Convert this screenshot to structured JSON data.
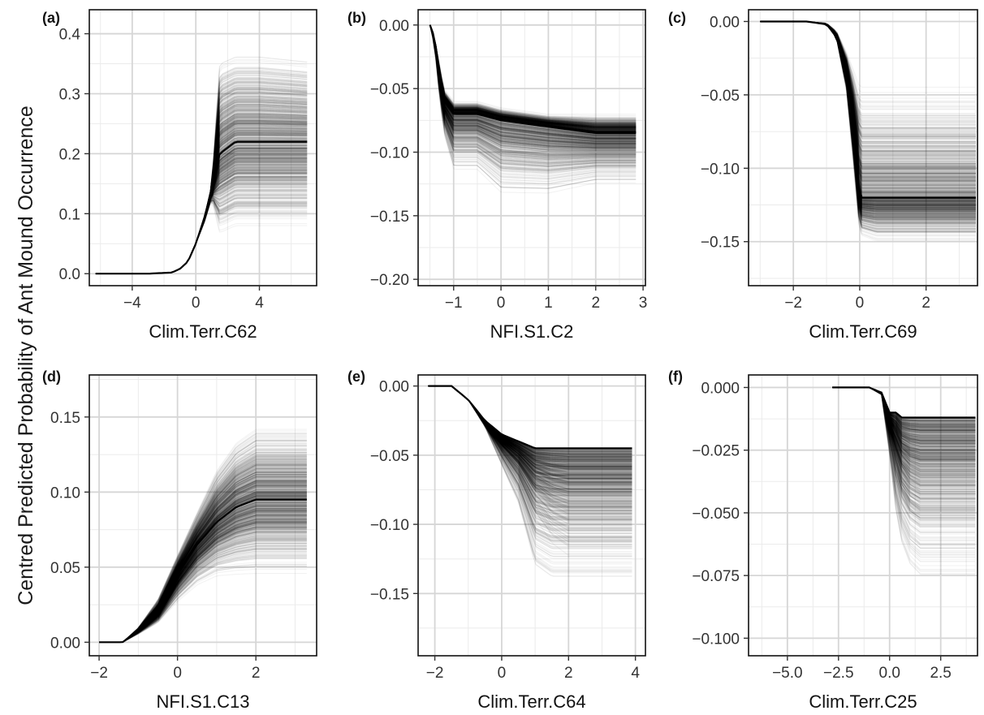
{
  "figure": {
    "ylabel": "Centred Predicted Probability of Ant Mound Occurrence"
  },
  "chart_data": [
    {
      "type": "line",
      "panel_label": "(a)",
      "xlabel": "Clim.Terr.C62",
      "ylabel": "Centred Predicted Probability of Ant Mound Occurrence",
      "xlim": [
        -6.7,
        7.6
      ],
      "ylim": [
        -0.02,
        0.44
      ],
      "xticks": [
        -4,
        0,
        4
      ],
      "xtick_labels": [
        "−4",
        "0",
        "4"
      ],
      "yticks": [
        0.0,
        0.1,
        0.2,
        0.3,
        0.4
      ],
      "ytick_labels": [
        "0.0",
        "0.1",
        "0.2",
        "0.3",
        "0.4"
      ],
      "x_data_range": [
        -6.3,
        7.0
      ],
      "curves": {
        "count": 1000,
        "opacity": 0.05,
        "color": "#000000"
      },
      "grid": true,
      "series": [
        {
          "x": [
            -6.3,
            -3.0,
            -1.5,
            -1.0,
            -0.5,
            0.0,
            0.5,
            1.0,
            1.5,
            2.5,
            4.0,
            7.0
          ],
          "values": [
            0.0,
            0.0,
            0.002,
            0.008,
            0.02,
            0.05,
            0.09,
            0.14,
            0.2,
            0.22,
            0.22,
            0.22
          ]
        },
        {
          "x": [
            -6.3,
            -3.0,
            -1.5,
            -1.0,
            -0.5,
            0.0,
            0.5,
            1.0,
            1.5,
            2.5,
            4.0,
            7.0
          ],
          "values": [
            0.0,
            0.0,
            0.002,
            0.008,
            0.02,
            0.05,
            0.09,
            0.15,
            0.38,
            0.39,
            0.39,
            0.38
          ]
        },
        {
          "x": [
            -6.3,
            -3.0,
            -1.5,
            -1.0,
            -0.5,
            0.0,
            0.5,
            1.0,
            1.5,
            2.5,
            4.0,
            7.0
          ],
          "values": [
            0.0,
            0.0,
            0.002,
            0.008,
            0.02,
            0.05,
            0.08,
            0.12,
            0.04,
            0.05,
            0.05,
            0.05
          ]
        }
      ]
    },
    {
      "type": "line",
      "panel_label": "(b)",
      "xlabel": "NFI.S1.C2",
      "ylabel": "Centred Predicted Probability of Ant Mound Occurrence",
      "xlim": [
        -1.75,
        3.05
      ],
      "ylim": [
        -0.205,
        0.012
      ],
      "xticks": [
        -1,
        0,
        1,
        2,
        3
      ],
      "xtick_labels": [
        "−1",
        "0",
        "1",
        "2",
        "3"
      ],
      "yticks": [
        0.0,
        -0.05,
        -0.1,
        -0.15,
        -0.2
      ],
      "ytick_labels": [
        "0.00",
        "−0.05",
        "−0.10",
        "−0.15",
        "−0.20"
      ],
      "x_data_range": [
        -1.5,
        2.85
      ],
      "curves": {
        "count": 1000,
        "opacity": 0.05,
        "color": "#000000"
      },
      "grid": true,
      "series": [
        {
          "x": [
            -1.5,
            -1.4,
            -1.3,
            -1.2,
            -1.0,
            -0.5,
            0.0,
            1.0,
            2.0,
            2.85
          ],
          "values": [
            0.0,
            -0.01,
            -0.04,
            -0.06,
            -0.07,
            -0.07,
            -0.075,
            -0.08,
            -0.085,
            -0.085
          ]
        },
        {
          "x": [
            -1.5,
            -1.4,
            -1.3,
            -1.2,
            -1.0,
            -0.5,
            0.0,
            1.0,
            2.0,
            2.85
          ],
          "values": [
            0.0,
            -0.01,
            -0.03,
            -0.05,
            -0.06,
            -0.06,
            -0.065,
            -0.07,
            -0.07,
            -0.07
          ]
        },
        {
          "x": [
            -1.5,
            -1.4,
            -1.3,
            -1.2,
            -1.0,
            -0.5,
            0.0,
            1.0,
            2.0,
            2.85
          ],
          "values": [
            0.0,
            -0.02,
            -0.06,
            -0.09,
            -0.12,
            -0.12,
            -0.14,
            -0.14,
            -0.13,
            -0.13
          ]
        }
      ]
    },
    {
      "type": "line",
      "panel_label": "(c)",
      "xlabel": "Clim.Terr.C69",
      "ylabel": "Centred Predicted Probability of Ant Mound Occurrence",
      "xlim": [
        -3.35,
        3.55
      ],
      "ylim": [
        -0.18,
        0.008
      ],
      "xticks": [
        -2,
        0,
        2
      ],
      "xtick_labels": [
        "−2",
        "0",
        "2"
      ],
      "yticks": [
        0.0,
        -0.05,
        -0.1,
        -0.15
      ],
      "ytick_labels": [
        "0.00",
        "−0.05",
        "−0.10",
        "−0.15"
      ],
      "x_data_range": [
        -3.0,
        3.5
      ],
      "curves": {
        "count": 1000,
        "opacity": 0.05,
        "color": "#000000"
      },
      "grid": true,
      "series": [
        {
          "x": [
            -3.0,
            -1.6,
            -1.0,
            -0.7,
            -0.4,
            -0.2,
            0.0,
            0.5,
            3.5
          ],
          "values": [
            0.0,
            0.0,
            -0.002,
            -0.01,
            -0.035,
            -0.07,
            -0.12,
            -0.12,
            -0.12
          ]
        },
        {
          "x": [
            -3.0,
            -1.6,
            -1.0,
            -0.7,
            -0.4,
            -0.2,
            0.0,
            0.5,
            3.5
          ],
          "values": [
            0.0,
            0.0,
            -0.001,
            -0.006,
            -0.02,
            -0.03,
            -0.04,
            -0.04,
            -0.04
          ]
        },
        {
          "x": [
            -3.0,
            -1.6,
            -1.0,
            -0.7,
            -0.4,
            -0.2,
            0.0,
            0.5,
            3.5
          ],
          "values": [
            0.0,
            0.0,
            -0.002,
            -0.012,
            -0.05,
            -0.1,
            -0.15,
            -0.155,
            -0.155
          ]
        }
      ]
    },
    {
      "type": "line",
      "panel_label": "(d)",
      "xlabel": "NFI.S1.C13",
      "ylabel": "Centred Predicted Probability of Ant Mound Occurrence",
      "xlim": [
        -2.25,
        3.55
      ],
      "ylim": [
        -0.009,
        0.178
      ],
      "xticks": [
        -2,
        0,
        2
      ],
      "xtick_labels": [
        "−2",
        "0",
        "2"
      ],
      "yticks": [
        0.0,
        0.05,
        0.1,
        0.15
      ],
      "ytick_labels": [
        "0.00",
        "0.05",
        "0.10",
        "0.15"
      ],
      "x_data_range": [
        -2.0,
        3.3
      ],
      "curves": {
        "count": 1000,
        "opacity": 0.05,
        "color": "#000000"
      },
      "grid": true,
      "series": [
        {
          "x": [
            -2.0,
            -1.4,
            -1.0,
            -0.5,
            0.0,
            0.5,
            1.0,
            1.5,
            2.0,
            3.3
          ],
          "values": [
            0.0,
            0.0,
            0.008,
            0.02,
            0.045,
            0.065,
            0.08,
            0.09,
            0.095,
            0.095
          ]
        },
        {
          "x": [
            -2.0,
            -1.4,
            -1.0,
            -0.5,
            0.0,
            0.5,
            1.0,
            1.5,
            2.0,
            3.3
          ],
          "values": [
            0.0,
            0.0,
            0.01,
            0.03,
            0.06,
            0.09,
            0.12,
            0.14,
            0.15,
            0.15
          ]
        },
        {
          "x": [
            -2.0,
            -1.4,
            -1.0,
            -0.5,
            0.0,
            0.5,
            1.0,
            1.5,
            2.0,
            3.3
          ],
          "values": [
            0.0,
            0.0,
            0.005,
            0.012,
            0.025,
            0.035,
            0.04,
            0.04,
            0.04,
            0.04
          ]
        }
      ]
    },
    {
      "type": "line",
      "panel_label": "(e)",
      "xlabel": "Clim.Terr.C64",
      "ylabel": "Centred Predicted Probability of Ant Mound Occurrence",
      "xlim": [
        -2.5,
        4.3
      ],
      "ylim": [
        -0.195,
        0.008
      ],
      "xticks": [
        -2,
        0,
        2,
        4
      ],
      "xtick_labels": [
        "−2",
        "0",
        "2",
        "4"
      ],
      "yticks": [
        0.0,
        -0.05,
        -0.1,
        -0.15
      ],
      "ytick_labels": [
        "0.00",
        "−0.05",
        "−0.10",
        "−0.15"
      ],
      "x_data_range": [
        -2.2,
        3.9
      ],
      "curves": {
        "count": 1000,
        "opacity": 0.05,
        "color": "#000000"
      },
      "grid": true,
      "series": [
        {
          "x": [
            -2.2,
            -1.5,
            -1.0,
            -0.5,
            0.0,
            0.5,
            1.0,
            1.5,
            2.0,
            3.9
          ],
          "values": [
            0.0,
            0.0,
            -0.01,
            -0.025,
            -0.035,
            -0.04,
            -0.045,
            -0.045,
            -0.045,
            -0.045
          ]
        },
        {
          "x": [
            -2.2,
            -1.5,
            -1.0,
            -0.5,
            0.0,
            0.5,
            1.0,
            1.5,
            2.0,
            3.9
          ],
          "values": [
            0.0,
            0.0,
            -0.01,
            -0.03,
            -0.05,
            -0.07,
            -0.1,
            -0.12,
            -0.13,
            -0.13
          ]
        },
        {
          "x": [
            -2.2,
            -1.5,
            -1.0,
            -0.5,
            0.0,
            0.5,
            1.0,
            1.5,
            2.0,
            3.9
          ],
          "values": [
            0.0,
            0.0,
            -0.01,
            -0.03,
            -0.06,
            -0.09,
            -0.14,
            -0.15,
            -0.15,
            -0.15
          ]
        }
      ]
    },
    {
      "type": "line",
      "panel_label": "(f)",
      "xlabel": "Clim.Terr.C25",
      "ylabel": "Centred Predicted Probability of Ant Mound Occurrence",
      "xlim": [
        -6.9,
        4.3
      ],
      "ylim": [
        -0.107,
        0.005
      ],
      "xticks": [
        -5.0,
        -2.5,
        0.0,
        2.5
      ],
      "xtick_labels": [
        "−5.0",
        "−2.5",
        "0.0",
        "2.5"
      ],
      "yticks": [
        0.0,
        -0.025,
        -0.05,
        -0.075,
        -0.1
      ],
      "ytick_labels": [
        "0.000",
        "−0.025",
        "−0.050",
        "−0.075",
        "−0.100"
      ],
      "x_data_range": [
        -2.8,
        4.2
      ],
      "curves": {
        "count": 1000,
        "opacity": 0.05,
        "color": "#000000"
      },
      "grid": true,
      "series": [
        {
          "x": [
            -2.8,
            -1.0,
            -0.4,
            0.0,
            0.3,
            0.6,
            1.0,
            1.5,
            4.2
          ],
          "values": [
            0.0,
            0.0,
            -0.002,
            -0.01,
            -0.01,
            -0.012,
            -0.012,
            -0.012,
            -0.012
          ]
        },
        {
          "x": [
            -2.8,
            -1.0,
            -0.4,
            0.0,
            0.3,
            0.6,
            1.0,
            1.5,
            4.2
          ],
          "values": [
            0.0,
            0.0,
            -0.003,
            -0.02,
            -0.035,
            -0.05,
            -0.06,
            -0.065,
            -0.065
          ]
        },
        {
          "x": [
            -2.8,
            -1.0,
            -0.4,
            0.0,
            0.3,
            0.6,
            1.0,
            1.5,
            4.2
          ],
          "values": [
            0.0,
            0.0,
            -0.003,
            -0.03,
            -0.055,
            -0.07,
            -0.08,
            -0.085,
            -0.085
          ]
        }
      ]
    }
  ]
}
